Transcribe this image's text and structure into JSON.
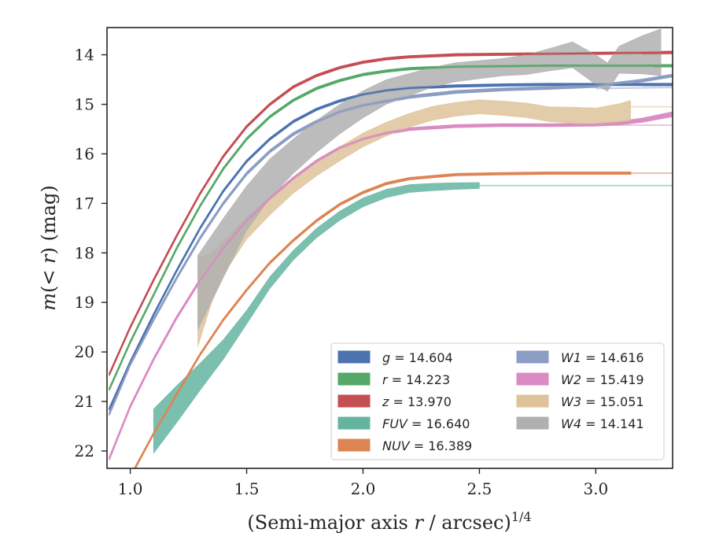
{
  "chart_data": {
    "type": "line",
    "title": "",
    "xlabel": "(Semi-major axis r / arcsec)",
    "xlabel_pre": "(Semi-major axis ",
    "xlabel_var": "r",
    "xlabel_post": " / arcsec)",
    "xlabel_sup": "1/4",
    "ylabel": "m(< r) (mag)",
    "ylabel_pre": "m",
    "ylabel_paren_open": "(",
    "ylabel_lt": "< ",
    "ylabel_var": "r",
    "ylabel_paren_close": ")",
    "ylabel_unit": " (mag)",
    "xlim": [
      0.9,
      3.33
    ],
    "ylim": [
      22.35,
      13.45
    ],
    "y_inverted": true,
    "grid": false,
    "legend_position": "lower-right",
    "x_ticks": [
      1.0,
      1.5,
      2.0,
      2.5,
      3.0
    ],
    "x_tick_labels": [
      "1.0",
      "1.5",
      "2.0",
      "2.5",
      "3.0"
    ],
    "y_ticks": [
      14,
      15,
      16,
      17,
      18,
      19,
      20,
      21,
      22
    ],
    "y_tick_labels": [
      "14",
      "15",
      "16",
      "17",
      "18",
      "19",
      "20",
      "21",
      "22"
    ],
    "series": [
      {
        "band": "g",
        "value_text": "14.604",
        "color": "#4c72b0",
        "points": [
          [
            0.91,
            21.15
          ],
          [
            1.0,
            20.2
          ],
          [
            1.1,
            19.25
          ],
          [
            1.2,
            18.35
          ],
          [
            1.3,
            17.5
          ],
          [
            1.4,
            16.75
          ],
          [
            1.5,
            16.15
          ],
          [
            1.6,
            15.7
          ],
          [
            1.7,
            15.35
          ],
          [
            1.8,
            15.1
          ],
          [
            1.9,
            14.93
          ],
          [
            2.0,
            14.8
          ],
          [
            2.1,
            14.72
          ],
          [
            2.2,
            14.67
          ],
          [
            2.4,
            14.63
          ],
          [
            2.6,
            14.61
          ],
          [
            2.8,
            14.6
          ],
          [
            3.0,
            14.6
          ],
          [
            3.2,
            14.6
          ],
          [
            3.33,
            14.6
          ]
        ],
        "width": [
          [
            0.91,
            0.04
          ],
          [
            3.33,
            0.04
          ]
        ],
        "extension": [
          [
            3.2,
            14.62
          ],
          [
            3.33,
            14.62
          ]
        ]
      },
      {
        "band": "r",
        "value_text": "14.223",
        "color": "#55a868",
        "points": [
          [
            0.91,
            20.75
          ],
          [
            1.0,
            19.8
          ],
          [
            1.1,
            18.85
          ],
          [
            1.2,
            17.9
          ],
          [
            1.3,
            17.05
          ],
          [
            1.4,
            16.3
          ],
          [
            1.5,
            15.7
          ],
          [
            1.6,
            15.25
          ],
          [
            1.7,
            14.92
          ],
          [
            1.8,
            14.68
          ],
          [
            1.9,
            14.52
          ],
          [
            2.0,
            14.4
          ],
          [
            2.1,
            14.33
          ],
          [
            2.2,
            14.28
          ],
          [
            2.4,
            14.24
          ],
          [
            2.6,
            14.23
          ],
          [
            2.8,
            14.22
          ],
          [
            3.0,
            14.22
          ],
          [
            3.2,
            14.22
          ],
          [
            3.33,
            14.22
          ]
        ],
        "width": [
          [
            0.91,
            0.04
          ],
          [
            3.33,
            0.04
          ]
        ],
        "extension": [
          [
            3.25,
            14.24
          ],
          [
            3.33,
            14.24
          ]
        ]
      },
      {
        "band": "z",
        "value_text": "13.970",
        "color": "#c44e52",
        "points": [
          [
            0.91,
            20.45
          ],
          [
            1.0,
            19.5
          ],
          [
            1.1,
            18.55
          ],
          [
            1.2,
            17.65
          ],
          [
            1.3,
            16.8
          ],
          [
            1.4,
            16.05
          ],
          [
            1.5,
            15.45
          ],
          [
            1.6,
            15.0
          ],
          [
            1.7,
            14.65
          ],
          [
            1.8,
            14.42
          ],
          [
            1.9,
            14.26
          ],
          [
            2.0,
            14.15
          ],
          [
            2.1,
            14.08
          ],
          [
            2.2,
            14.04
          ],
          [
            2.4,
            14.0
          ],
          [
            2.6,
            13.99
          ],
          [
            2.8,
            13.98
          ],
          [
            3.0,
            13.97
          ],
          [
            3.2,
            13.96
          ],
          [
            3.33,
            13.95
          ]
        ],
        "width": [
          [
            0.91,
            0.04
          ],
          [
            3.33,
            0.04
          ]
        ],
        "extension": [
          [
            3.2,
            13.98
          ],
          [
            3.33,
            13.98
          ]
        ]
      },
      {
        "band": "FUV",
        "value_text": "16.640",
        "color": "#64b5a0",
        "points": [
          [
            1.1,
            21.6
          ],
          [
            1.2,
            21.05
          ],
          [
            1.3,
            20.5
          ],
          [
            1.4,
            19.95
          ],
          [
            1.5,
            19.3
          ],
          [
            1.6,
            18.6
          ],
          [
            1.7,
            18.05
          ],
          [
            1.8,
            17.6
          ],
          [
            1.9,
            17.25
          ],
          [
            2.0,
            16.98
          ],
          [
            2.1,
            16.8
          ],
          [
            2.2,
            16.7
          ],
          [
            2.3,
            16.67
          ],
          [
            2.4,
            16.65
          ],
          [
            2.5,
            16.64
          ]
        ],
        "width": [
          [
            1.1,
            0.9
          ],
          [
            1.2,
            0.75
          ],
          [
            1.3,
            0.55
          ],
          [
            1.4,
            0.4
          ],
          [
            1.5,
            0.28
          ],
          [
            1.7,
            0.2
          ],
          [
            2.0,
            0.18
          ],
          [
            2.3,
            0.15
          ],
          [
            2.5,
            0.12
          ]
        ],
        "extension": [
          [
            2.5,
            16.64
          ],
          [
            3.33,
            16.64
          ]
        ]
      },
      {
        "band": "NUV",
        "value_text": "16.389",
        "color": "#dd8452",
        "points": [
          [
            1.02,
            22.35
          ],
          [
            1.1,
            21.65
          ],
          [
            1.2,
            20.85
          ],
          [
            1.3,
            20.05
          ],
          [
            1.4,
            19.35
          ],
          [
            1.5,
            18.75
          ],
          [
            1.6,
            18.2
          ],
          [
            1.7,
            17.75
          ],
          [
            1.8,
            17.35
          ],
          [
            1.9,
            17.02
          ],
          [
            2.0,
            16.78
          ],
          [
            2.1,
            16.6
          ],
          [
            2.2,
            16.5
          ],
          [
            2.4,
            16.42
          ],
          [
            2.6,
            16.4
          ],
          [
            2.8,
            16.39
          ],
          [
            3.0,
            16.39
          ],
          [
            3.15,
            16.39
          ]
        ],
        "width": [
          [
            1.02,
            0.04
          ],
          [
            3.15,
            0.04
          ]
        ],
        "extension": [
          [
            3.15,
            16.39
          ],
          [
            3.33,
            16.39
          ]
        ]
      },
      {
        "band": "W1",
        "value_text": "14.616",
        "color": "#8c9dc4",
        "points": [
          [
            0.91,
            21.25
          ],
          [
            1.0,
            20.25
          ],
          [
            1.1,
            19.35
          ],
          [
            1.2,
            18.5
          ],
          [
            1.3,
            17.7
          ],
          [
            1.4,
            17.0
          ],
          [
            1.5,
            16.4
          ],
          [
            1.6,
            15.95
          ],
          [
            1.7,
            15.6
          ],
          [
            1.8,
            15.35
          ],
          [
            1.9,
            15.15
          ],
          [
            2.0,
            15.02
          ],
          [
            2.2,
            14.85
          ],
          [
            2.4,
            14.75
          ],
          [
            2.6,
            14.7
          ],
          [
            2.8,
            14.67
          ],
          [
            3.0,
            14.63
          ],
          [
            3.2,
            14.52
          ],
          [
            3.33,
            14.42
          ]
        ],
        "width": [
          [
            0.91,
            0.05
          ],
          [
            3.33,
            0.05
          ]
        ],
        "extension": [
          [
            3.0,
            14.68
          ],
          [
            3.33,
            14.66
          ]
        ]
      },
      {
        "band": "W2",
        "value_text": "15.419",
        "color": "#da8bc3",
        "points": [
          [
            0.91,
            22.15
          ],
          [
            1.0,
            21.1
          ],
          [
            1.1,
            20.15
          ],
          [
            1.2,
            19.3
          ],
          [
            1.3,
            18.55
          ],
          [
            1.4,
            17.9
          ],
          [
            1.5,
            17.35
          ],
          [
            1.6,
            16.9
          ],
          [
            1.7,
            16.5
          ],
          [
            1.8,
            16.15
          ],
          [
            1.9,
            15.88
          ],
          [
            2.0,
            15.7
          ],
          [
            2.1,
            15.58
          ],
          [
            2.2,
            15.5
          ],
          [
            2.4,
            15.44
          ],
          [
            2.6,
            15.42
          ],
          [
            2.8,
            15.42
          ],
          [
            3.0,
            15.41
          ],
          [
            3.1,
            15.38
          ],
          [
            3.2,
            15.32
          ],
          [
            3.33,
            15.2
          ]
        ],
        "width": [
          [
            0.91,
            0.05
          ],
          [
            3.0,
            0.05
          ],
          [
            3.33,
            0.09
          ]
        ],
        "extension": [
          [
            3.05,
            15.42
          ],
          [
            3.33,
            15.42
          ]
        ]
      },
      {
        "band": "W3",
        "value_text": "15.051",
        "color": "#dec39a",
        "points": [
          [
            1.29,
            19.0
          ],
          [
            1.35,
            18.5
          ],
          [
            1.4,
            18.1
          ],
          [
            1.5,
            17.5
          ],
          [
            1.6,
            17.05
          ],
          [
            1.7,
            16.65
          ],
          [
            1.8,
            16.3
          ],
          [
            1.9,
            16.0
          ],
          [
            2.0,
            15.72
          ],
          [
            2.1,
            15.5
          ],
          [
            2.2,
            15.32
          ],
          [
            2.3,
            15.18
          ],
          [
            2.4,
            15.1
          ],
          [
            2.5,
            15.05
          ],
          [
            2.6,
            15.08
          ],
          [
            2.7,
            15.12
          ],
          [
            2.8,
            15.2
          ],
          [
            2.9,
            15.22
          ],
          [
            3.0,
            15.25
          ],
          [
            3.1,
            15.18
          ],
          [
            3.15,
            15.12
          ]
        ],
        "width": [
          [
            1.29,
            1.8
          ],
          [
            1.35,
            1.0
          ],
          [
            1.4,
            0.7
          ],
          [
            1.5,
            0.45
          ],
          [
            1.7,
            0.3
          ],
          [
            2.0,
            0.28
          ],
          [
            2.4,
            0.28
          ],
          [
            2.8,
            0.3
          ],
          [
            3.0,
            0.35
          ],
          [
            3.15,
            0.4
          ]
        ],
        "extension": [
          [
            3.15,
            15.05
          ],
          [
            3.33,
            15.05
          ]
        ]
      },
      {
        "band": "W4",
        "value_text": "14.141",
        "color": "#b0b0b0",
        "points": [
          [
            1.29,
            18.8
          ],
          [
            1.4,
            17.9
          ],
          [
            1.5,
            17.1
          ],
          [
            1.6,
            16.5
          ],
          [
            1.7,
            16.05
          ],
          [
            1.8,
            15.65
          ],
          [
            1.9,
            15.3
          ],
          [
            2.0,
            15.0
          ],
          [
            2.1,
            14.75
          ],
          [
            2.2,
            14.6
          ],
          [
            2.3,
            14.45
          ],
          [
            2.4,
            14.35
          ],
          [
            2.5,
            14.3
          ],
          [
            2.6,
            14.25
          ],
          [
            2.7,
            14.2
          ],
          [
            2.8,
            14.1
          ],
          [
            2.9,
            14.0
          ],
          [
            3.0,
            14.3
          ],
          [
            3.05,
            14.45
          ],
          [
            3.1,
            14.1
          ],
          [
            3.2,
            14.0
          ],
          [
            3.28,
            13.95
          ]
        ],
        "width": [
          [
            1.29,
            1.5
          ],
          [
            1.4,
            1.2
          ],
          [
            1.5,
            0.9
          ],
          [
            1.7,
            0.7
          ],
          [
            2.0,
            0.55
          ],
          [
            2.3,
            0.4
          ],
          [
            2.6,
            0.35
          ],
          [
            2.8,
            0.45
          ],
          [
            3.0,
            0.6
          ],
          [
            3.1,
            0.55
          ],
          [
            3.28,
            0.95
          ]
        ],
        "extension": []
      }
    ],
    "legend_order": [
      [
        "g",
        "W1"
      ],
      [
        "r",
        "W2"
      ],
      [
        "z",
        "W3"
      ],
      [
        "FUV",
        "W4"
      ],
      [
        "NUV",
        ""
      ]
    ]
  }
}
